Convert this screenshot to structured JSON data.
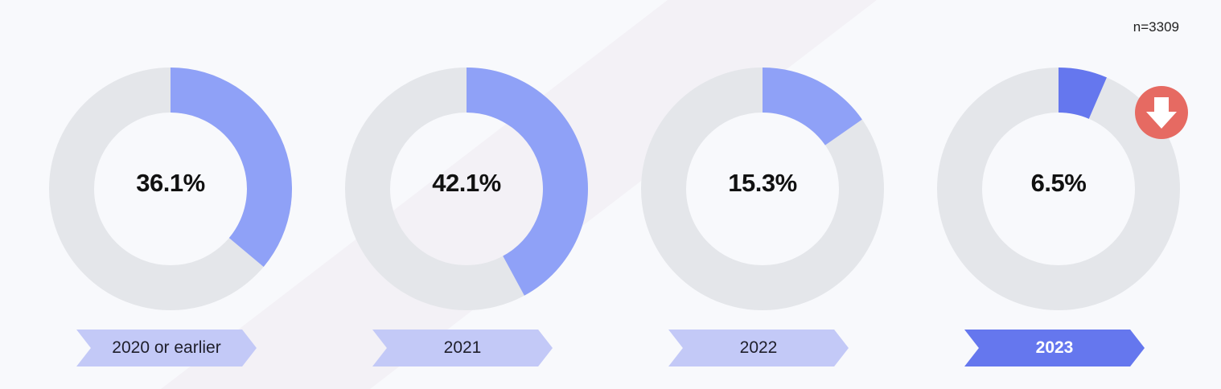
{
  "sample_size": "n=3309",
  "colors": {
    "track": "#e4e6ea",
    "segment": "#8fa1f7",
    "segment_highlight": "#6577ee",
    "label_bg": "#c3c9f7",
    "label_bg_highlight": "#6577ee",
    "label_text": "#1e1e2a",
    "label_text_highlight": "#ffffff",
    "trend_badge": "#e66a62"
  },
  "trend_icon": "arrow-down-icon",
  "chart_data": {
    "type": "pie",
    "variant": "donut",
    "categories": [
      "2020 or earlier",
      "2021",
      "2022",
      "2023"
    ],
    "values": [
      36.1,
      42.1,
      15.3,
      6.5
    ],
    "value_labels": [
      "36.1%",
      "42.1%",
      "15.3%",
      "6.5%"
    ],
    "highlighted_category": "2023",
    "title": "",
    "xlabel": "",
    "ylabel": ""
  }
}
